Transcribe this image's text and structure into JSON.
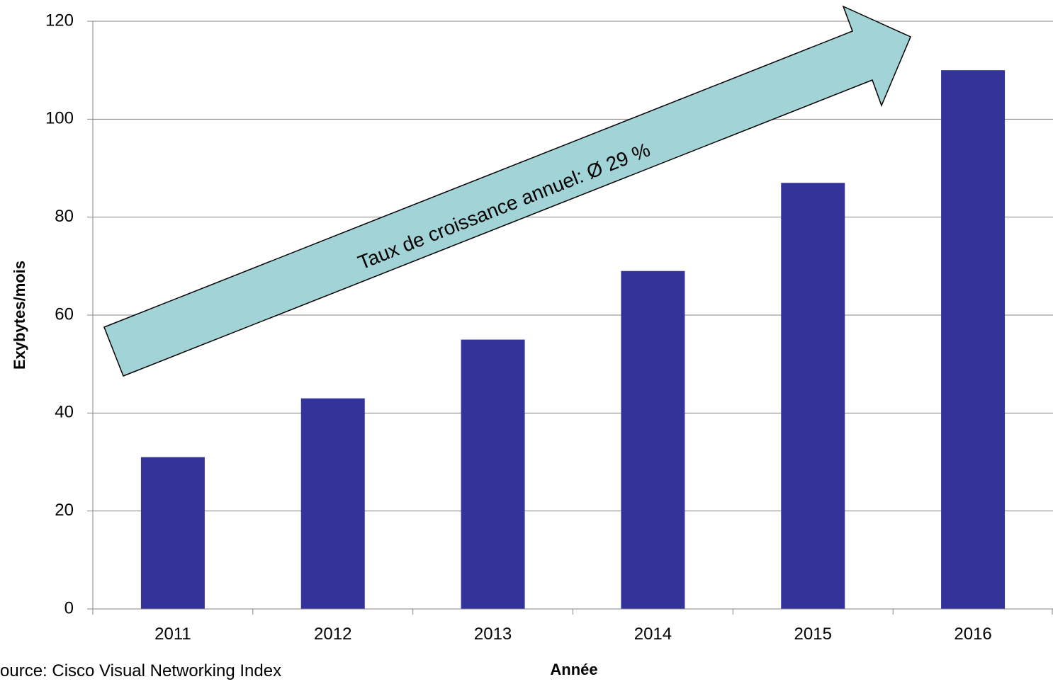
{
  "chart_data": {
    "type": "bar",
    "categories": [
      "2011",
      "2012",
      "2013",
      "2014",
      "2015",
      "2016"
    ],
    "values": [
      31,
      43,
      55,
      69,
      87,
      110
    ],
    "ylim": [
      0,
      120
    ],
    "yticks": [
      0,
      20,
      40,
      60,
      80,
      100,
      120
    ],
    "xlabel": "Année",
    "ylabel": "Exybytes/mois",
    "grid": true,
    "legend": "none",
    "bar_color": "#333399",
    "annotation": "Taux de croissance annuel: Ø 29 %",
    "annotation_fill": "#a2d3d7",
    "source": "ource: Cisco Visual Networking Index"
  }
}
